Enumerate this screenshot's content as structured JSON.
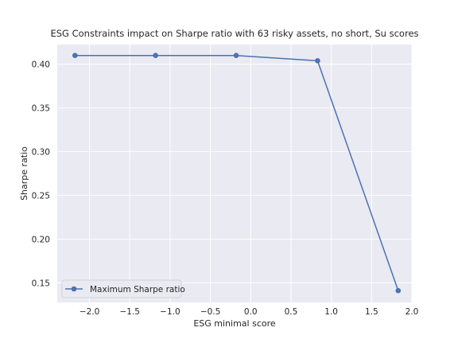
{
  "chart_data": {
    "type": "line",
    "title": "ESG Constraints impact on Sharpe ratio with 63 risky assets, no short, Su scores",
    "xlabel": "ESG minimal score",
    "ylabel": "Sharpe ratio",
    "xlim": [
      -2.4,
      2.0
    ],
    "ylim": [
      0.1275,
      0.4225
    ],
    "xticks": [
      -2.0,
      -1.5,
      -1.0,
      -0.5,
      0.0,
      0.5,
      1.0,
      1.5,
      2.0
    ],
    "xtick_labels": [
      "−2.0",
      "−1.5",
      "−1.0",
      "−0.5",
      "0.0",
      "0.5",
      "1.0",
      "1.5",
      "2.0"
    ],
    "yticks": [
      0.15,
      0.2,
      0.25,
      0.3,
      0.35,
      0.4
    ],
    "ytick_labels": [
      "0.15",
      "0.20",
      "0.25",
      "0.30",
      "0.35",
      "0.40"
    ],
    "grid": true,
    "legend_position": "lower-left",
    "colors": {
      "line": "#4c72b0",
      "plot_background": "#eaeaf2",
      "grid": "#ffffff"
    },
    "series": [
      {
        "name": "Maximum Sharpe ratio",
        "marker": "circle",
        "x": [
          -2.18,
          -1.18,
          -0.18,
          0.83,
          1.83
        ],
        "y": [
          0.41,
          0.41,
          0.41,
          0.404,
          0.141
        ]
      }
    ]
  }
}
